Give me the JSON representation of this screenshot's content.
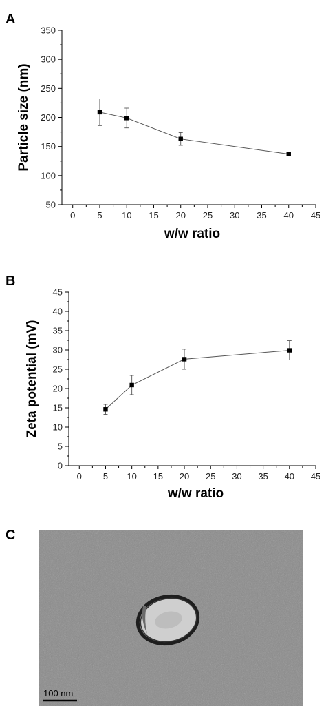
{
  "panels": {
    "a_label": "A",
    "b_label": "B",
    "c_label": "C"
  },
  "chart_data": [
    {
      "type": "line",
      "title": "",
      "xlabel": "w/w ratio",
      "ylabel": "Particle size (nm)",
      "xlim": [
        -2,
        45
      ],
      "ylim": [
        50,
        350
      ],
      "xticks": [
        0,
        5,
        10,
        15,
        20,
        25,
        30,
        35,
        40,
        45
      ],
      "yticks": [
        50,
        100,
        150,
        200,
        250,
        300,
        350
      ],
      "grid": false,
      "marker": "square",
      "color": "#000000",
      "line_color": "#555555",
      "series": [
        {
          "x": [
            5,
            10,
            20,
            40
          ],
          "y": [
            209,
            199,
            163,
            137
          ],
          "error": [
            23,
            17,
            11,
            2
          ]
        }
      ]
    },
    {
      "type": "line",
      "title": "",
      "xlabel": "w/w ratio",
      "ylabel": "Zeta potential (mV)",
      "xlim": [
        -2,
        45
      ],
      "ylim": [
        0,
        45
      ],
      "xticks": [
        0,
        5,
        10,
        15,
        20,
        25,
        30,
        35,
        40,
        45
      ],
      "yticks": [
        0,
        5,
        10,
        15,
        20,
        25,
        30,
        35,
        40,
        45
      ],
      "grid": false,
      "marker": "square",
      "color": "#000000",
      "line_color": "#555555",
      "series": [
        {
          "x": [
            5,
            10,
            20,
            40
          ],
          "y": [
            14.6,
            20.9,
            27.6,
            29.9
          ],
          "error": [
            1.3,
            2.5,
            2.6,
            2.5
          ]
        }
      ]
    }
  ],
  "micrograph": {
    "scale_bar_label": "100 nm",
    "background_color": "#8a8a8a",
    "particle_color": "#cfcfcf",
    "rim_color": "#1e1e1e"
  }
}
